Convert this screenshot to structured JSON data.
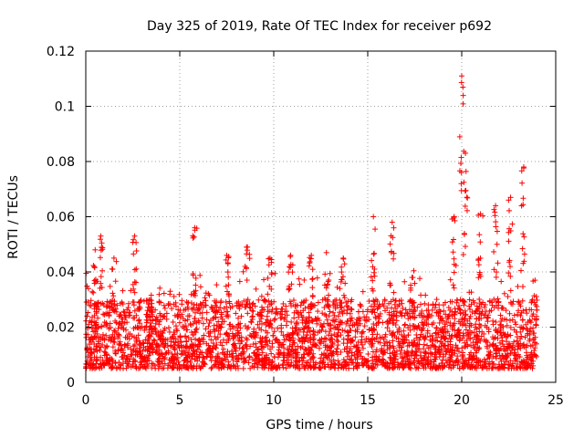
{
  "chart_data": {
    "type": "scatter",
    "title": "Day 325 of 2019, Rate Of TEC Index for receiver p692",
    "xlabel": "GPS time / hours",
    "ylabel": "ROTI / TECUs",
    "xlim": [
      0,
      25
    ],
    "ylim": [
      0,
      0.12
    ],
    "xticks": [
      0,
      5,
      10,
      15,
      20,
      25
    ],
    "xtick_labels": [
      "0",
      "5",
      "10",
      "15",
      "20",
      "25"
    ],
    "yticks": [
      0,
      0.02,
      0.04,
      0.06,
      0.08,
      0.1,
      0.12
    ],
    "ytick_labels": [
      "0",
      "0.02",
      "0.04",
      "0.06",
      "0.08",
      "0.1",
      "0.12"
    ],
    "grid": true,
    "marker": "+",
    "color": "#ff0000",
    "series": [
      {
        "name": "ROTI",
        "x_range": [
          0,
          24
        ],
        "typical_band": [
          0.005,
          0.03
        ],
        "peaks": [
          {
            "x": 0.5,
            "y": 0.048
          },
          {
            "x": 0.8,
            "y": 0.053
          },
          {
            "x": 1.5,
            "y": 0.045
          },
          {
            "x": 2.6,
            "y": 0.053
          },
          {
            "x": 3.4,
            "y": 0.03
          },
          {
            "x": 5.8,
            "y": 0.056
          },
          {
            "x": 7.5,
            "y": 0.046
          },
          {
            "x": 8.6,
            "y": 0.049
          },
          {
            "x": 9.8,
            "y": 0.045
          },
          {
            "x": 10.9,
            "y": 0.046
          },
          {
            "x": 12.0,
            "y": 0.046
          },
          {
            "x": 12.8,
            "y": 0.047
          },
          {
            "x": 13.7,
            "y": 0.045
          },
          {
            "x": 15.3,
            "y": 0.06
          },
          {
            "x": 16.3,
            "y": 0.058
          },
          {
            "x": 17.4,
            "y": 0.038
          },
          {
            "x": 19.6,
            "y": 0.06
          },
          {
            "x": 20.0,
            "y": 0.111
          },
          {
            "x": 20.2,
            "y": 0.083
          },
          {
            "x": 21.0,
            "y": 0.061
          },
          {
            "x": 21.8,
            "y": 0.064
          },
          {
            "x": 22.6,
            "y": 0.067
          },
          {
            "x": 23.3,
            "y": 0.078
          },
          {
            "x": 23.9,
            "y": 0.037
          }
        ]
      }
    ]
  }
}
